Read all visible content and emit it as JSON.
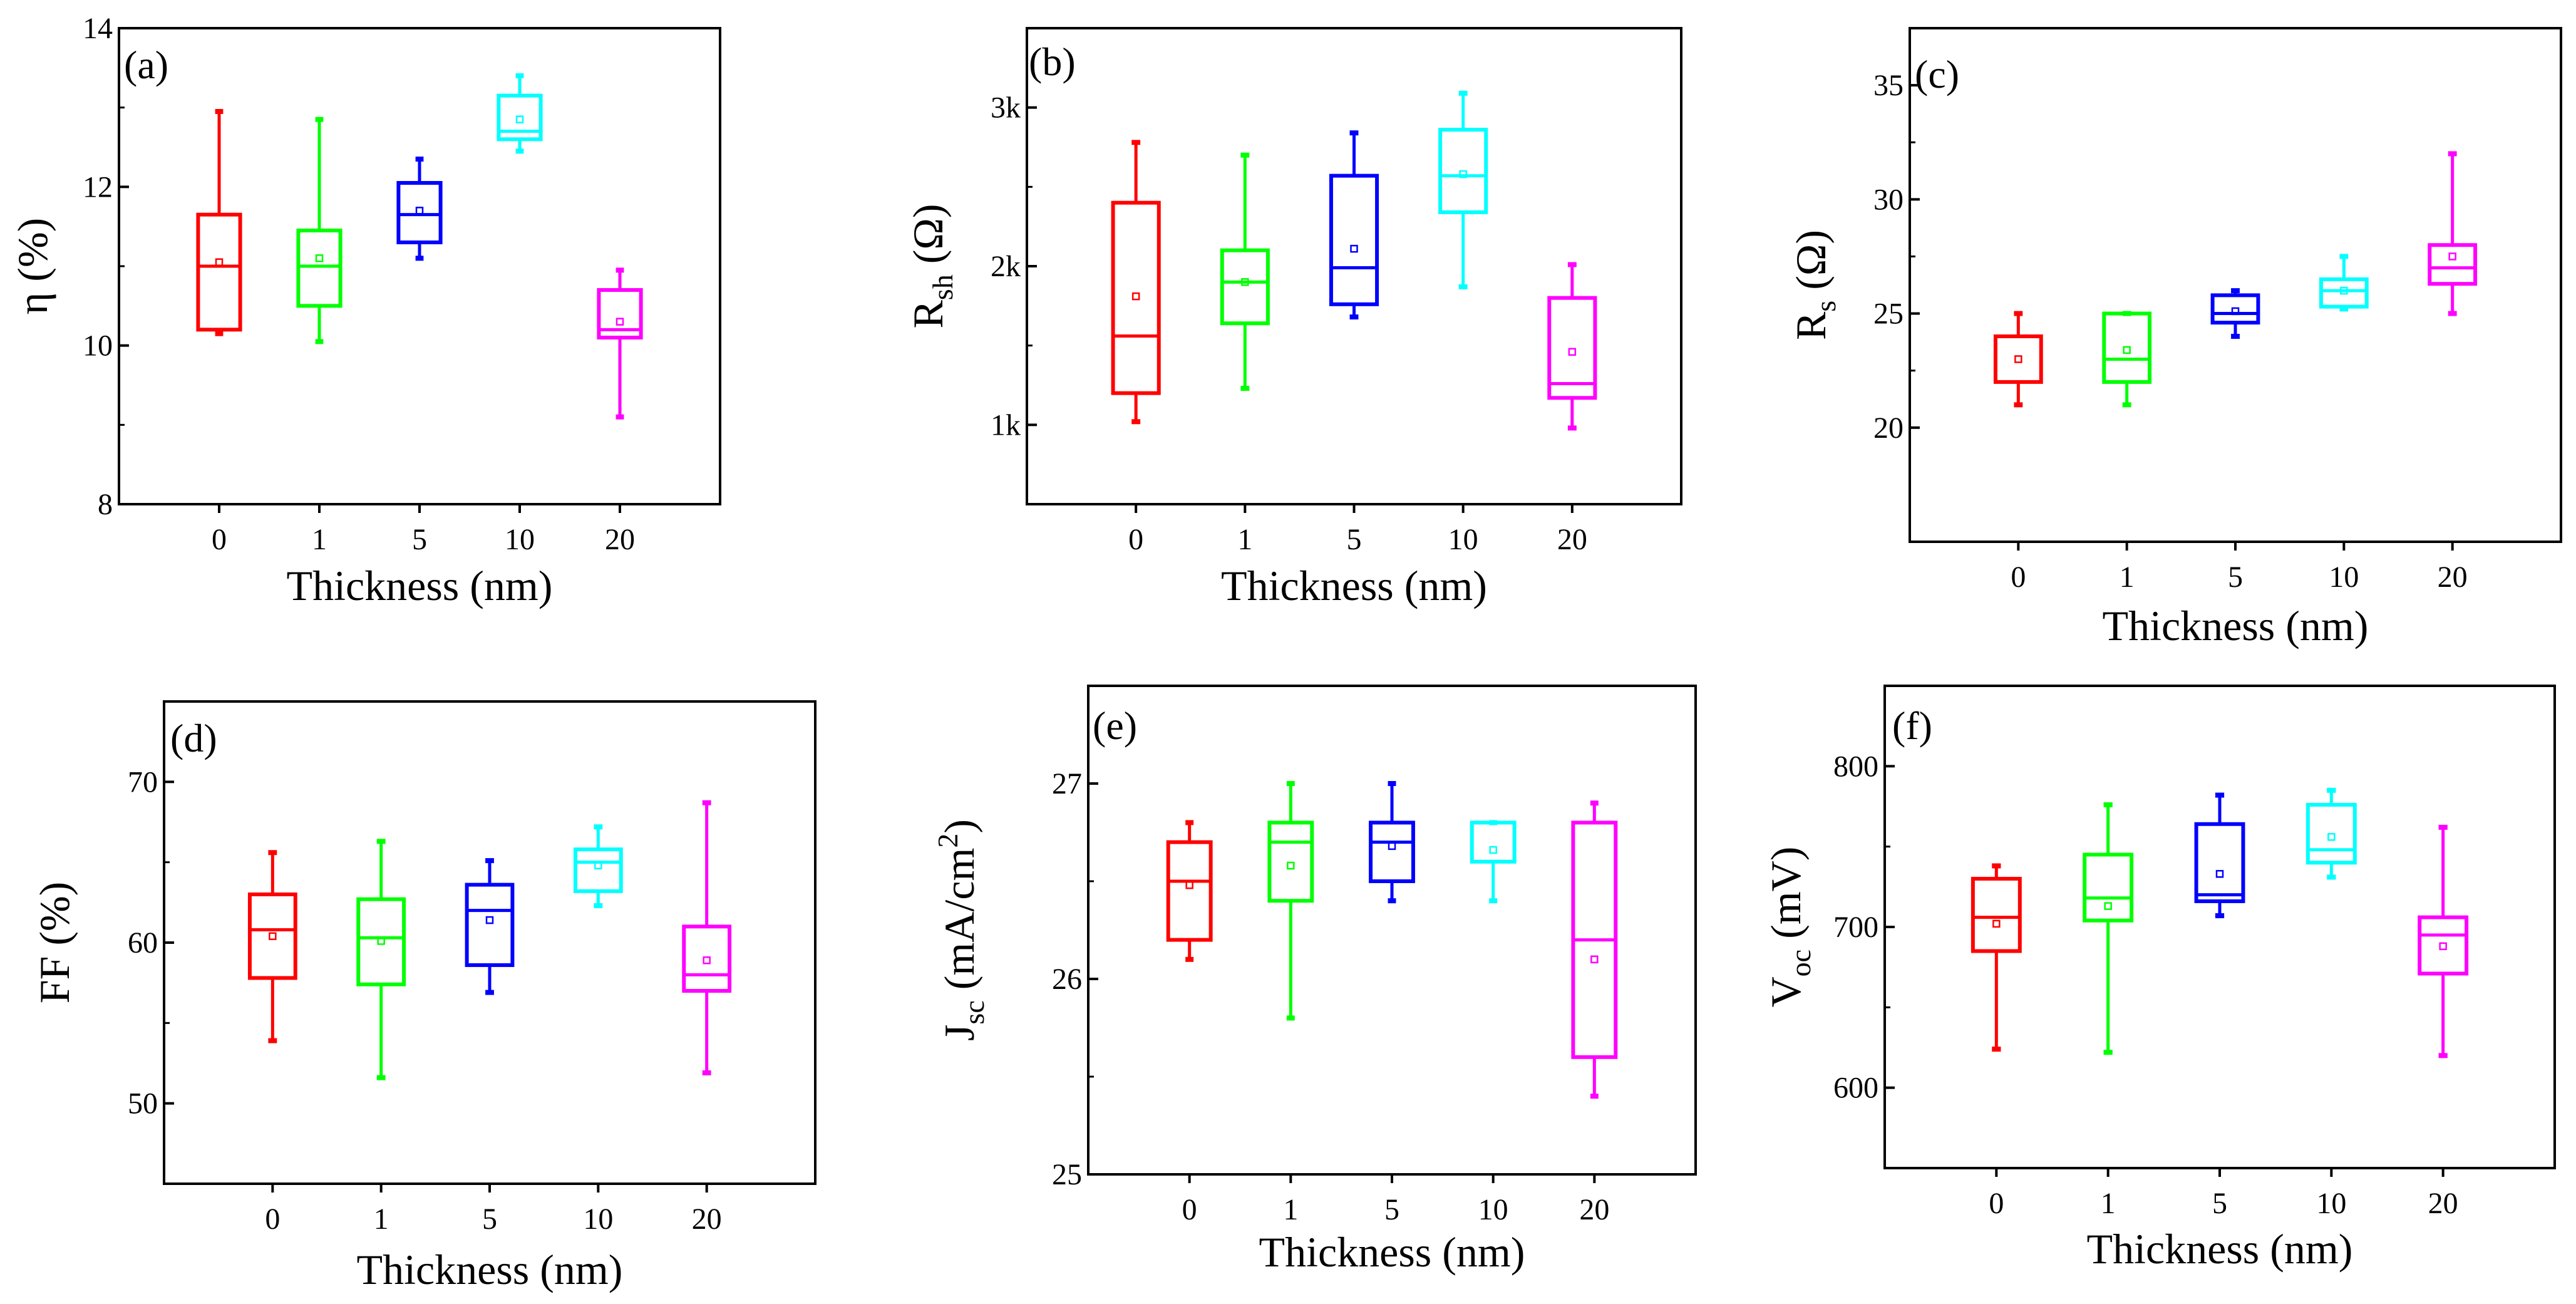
{
  "chart_data": [
    {
      "type": "box",
      "panel_label": "(a)",
      "ylabel": "η (%)",
      "xlabel": "Thickness (nm)",
      "categories": [
        "0",
        "1",
        "5",
        "10",
        "20"
      ],
      "colors": [
        "#ff0000",
        "#00ff00",
        "#0000ff",
        "#00ffff",
        "#ff00ff"
      ],
      "ylim": [
        8,
        14
      ],
      "yticks": [
        8,
        10,
        12,
        14
      ],
      "ytick_labels": [
        "8",
        "10",
        "12",
        "14"
      ],
      "boxes": [
        {
          "category": "0",
          "min": 10.15,
          "q1": 10.2,
          "median": 11.0,
          "q3": 11.65,
          "max": 12.95,
          "mean": 11.05
        },
        {
          "category": "1",
          "min": 10.05,
          "q1": 10.5,
          "median": 11.0,
          "q3": 11.45,
          "max": 12.85,
          "mean": 11.1
        },
        {
          "category": "5",
          "min": 11.1,
          "q1": 11.3,
          "median": 11.65,
          "q3": 12.05,
          "max": 12.35,
          "mean": 11.7
        },
        {
          "category": "10",
          "min": 12.45,
          "q1": 12.6,
          "median": 12.7,
          "q3": 13.15,
          "max": 13.4,
          "mean": 12.85
        },
        {
          "category": "20",
          "min": 9.1,
          "q1": 10.1,
          "median": 10.2,
          "q3": 10.7,
          "max": 10.95,
          "mean": 10.3
        }
      ]
    },
    {
      "type": "box",
      "panel_label": "(b)",
      "ylabel": "R_sh (Ω)",
      "ylabel_main": "R",
      "ylabel_sub": "sh",
      "ylabel_unit": " (Ω)",
      "xlabel": "Thickness (nm)",
      "categories": [
        "0",
        "1",
        "5",
        "10",
        "20"
      ],
      "colors": [
        "#ff0000",
        "#00ff00",
        "#0000ff",
        "#00ffff",
        "#ff00ff"
      ],
      "ylim": [
        500,
        3500
      ],
      "yticks": [
        1000,
        2000,
        3000
      ],
      "ytick_labels": [
        "1k",
        "2k",
        "3k"
      ],
      "boxes": [
        {
          "category": "0",
          "min": 1020,
          "q1": 1200,
          "median": 1560,
          "q3": 2400,
          "max": 2780,
          "mean": 1810
        },
        {
          "category": "1",
          "min": 1230,
          "q1": 1640,
          "median": 1900,
          "q3": 2100,
          "max": 2700,
          "mean": 1900
        },
        {
          "category": "5",
          "min": 1680,
          "q1": 1760,
          "median": 1990,
          "q3": 2570,
          "max": 2840,
          "mean": 2110
        },
        {
          "category": "10",
          "min": 1870,
          "q1": 2340,
          "median": 2570,
          "q3": 2860,
          "max": 3090,
          "mean": 2580
        },
        {
          "category": "20",
          "min": 980,
          "q1": 1170,
          "median": 1260,
          "q3": 1800,
          "max": 2010,
          "mean": 1460
        }
      ]
    },
    {
      "type": "box",
      "panel_label": "(c)",
      "ylabel": "R_s (Ω)",
      "ylabel_main": "R",
      "ylabel_sub": "s",
      "ylabel_unit": " (Ω)",
      "xlabel": "Thickness (nm)",
      "categories": [
        "0",
        "1",
        "5",
        "10",
        "20"
      ],
      "colors": [
        "#ff0000",
        "#00ff00",
        "#0000ff",
        "#00ffff",
        "#ff00ff"
      ],
      "ylim": [
        15,
        37.5
      ],
      "yticks": [
        20,
        25,
        30,
        35
      ],
      "ytick_labels": [
        "20",
        "25",
        "30",
        "35"
      ],
      "boxes": [
        {
          "category": "0",
          "min": 21.0,
          "q1": 22.0,
          "median": 22.0,
          "q3": 24.0,
          "max": 25.0,
          "mean": 23.0
        },
        {
          "category": "1",
          "min": 21.0,
          "q1": 22.0,
          "median": 23.0,
          "q3": 25.0,
          "max": 25.0,
          "mean": 23.4
        },
        {
          "category": "5",
          "min": 24.0,
          "q1": 24.6,
          "median": 25.0,
          "q3": 25.8,
          "max": 26.0,
          "mean": 25.1
        },
        {
          "category": "10",
          "min": 25.2,
          "q1": 25.3,
          "median": 26.0,
          "q3": 26.5,
          "max": 27.5,
          "mean": 26.0
        },
        {
          "category": "20",
          "min": 25.0,
          "q1": 26.3,
          "median": 27.0,
          "q3": 28.0,
          "max": 32.0,
          "mean": 27.5
        }
      ]
    },
    {
      "type": "box",
      "panel_label": "(d)",
      "ylabel": "FF (%)",
      "xlabel": "Thickness (nm)",
      "categories": [
        "0",
        "1",
        "5",
        "10",
        "20"
      ],
      "colors": [
        "#ff0000",
        "#00ff00",
        "#0000ff",
        "#00ffff",
        "#ff00ff"
      ],
      "ylim": [
        45,
        75
      ],
      "yticks": [
        50,
        60,
        70
      ],
      "ytick_labels": [
        "50",
        "60",
        "70"
      ],
      "boxes": [
        {
          "category": "0",
          "min": 53.9,
          "q1": 57.8,
          "median": 60.8,
          "q3": 63.0,
          "max": 65.6,
          "mean": 60.4
        },
        {
          "category": "1",
          "min": 51.6,
          "q1": 57.4,
          "median": 60.3,
          "q3": 62.7,
          "max": 66.3,
          "mean": 60.1
        },
        {
          "category": "5",
          "min": 56.9,
          "q1": 58.6,
          "median": 62.0,
          "q3": 63.6,
          "max": 65.1,
          "mean": 61.4
        },
        {
          "category": "10",
          "min": 62.3,
          "q1": 63.2,
          "median": 65.0,
          "q3": 65.8,
          "max": 67.2,
          "mean": 64.8
        },
        {
          "category": "20",
          "min": 51.9,
          "q1": 57.0,
          "median": 58.0,
          "q3": 61.0,
          "max": 68.7,
          "mean": 58.9
        }
      ]
    },
    {
      "type": "box",
      "panel_label": "(e)",
      "ylabel": "J_sc (mA/cm^2)",
      "ylabel_main": "J",
      "ylabel_sub": "sc",
      "ylabel_unit": " (mA/cm",
      "ylabel_sup": "2",
      "ylabel_end": ")",
      "xlabel": "Thickness (nm)",
      "categories": [
        "0",
        "1",
        "5",
        "10",
        "20"
      ],
      "colors": [
        "#ff0000",
        "#00ff00",
        "#0000ff",
        "#00ffff",
        "#ff00ff"
      ],
      "ylim": [
        25,
        27.5
      ],
      "yticks": [
        25,
        26,
        27
      ],
      "ytick_labels": [
        "25",
        "26",
        "27"
      ],
      "boxes": [
        {
          "category": "0",
          "min": 26.1,
          "q1": 26.2,
          "median": 26.5,
          "q3": 26.7,
          "max": 26.8,
          "mean": 26.48
        },
        {
          "category": "1",
          "min": 25.8,
          "q1": 26.4,
          "median": 26.7,
          "q3": 26.8,
          "max": 27.0,
          "mean": 26.58
        },
        {
          "category": "5",
          "min": 26.4,
          "q1": 26.5,
          "median": 26.7,
          "q3": 26.8,
          "max": 27.0,
          "mean": 26.68
        },
        {
          "category": "10",
          "min": 26.4,
          "q1": 26.6,
          "median": 26.6,
          "q3": 26.8,
          "max": 26.8,
          "mean": 26.66
        },
        {
          "category": "20",
          "min": 25.4,
          "q1": 25.6,
          "median": 26.2,
          "q3": 26.8,
          "max": 26.9,
          "mean": 26.1
        }
      ]
    },
    {
      "type": "box",
      "panel_label": "(f)",
      "ylabel": "V_oc (mV)",
      "ylabel_main": "V",
      "ylabel_sub": "oc",
      "ylabel_unit": " (mV)",
      "xlabel": "Thickness (nm)",
      "categories": [
        "0",
        "1",
        "5",
        "10",
        "20"
      ],
      "colors": [
        "#ff0000",
        "#00ff00",
        "#0000ff",
        "#00ffff",
        "#ff00ff"
      ],
      "ylim": [
        550,
        850
      ],
      "yticks": [
        600,
        700,
        800
      ],
      "ytick_labels": [
        "600",
        "700",
        "800"
      ],
      "boxes": [
        {
          "category": "0",
          "min": 624,
          "q1": 685,
          "median": 706,
          "q3": 730,
          "max": 738,
          "mean": 702
        },
        {
          "category": "1",
          "min": 622,
          "q1": 704,
          "median": 718,
          "q3": 745,
          "max": 776,
          "mean": 713
        },
        {
          "category": "5",
          "min": 707,
          "q1": 716,
          "median": 720,
          "q3": 764,
          "max": 782,
          "mean": 733
        },
        {
          "category": "10",
          "min": 731,
          "q1": 740,
          "median": 748,
          "q3": 776,
          "max": 785,
          "mean": 756
        },
        {
          "category": "20",
          "min": 620,
          "q1": 671,
          "median": 695,
          "q3": 706,
          "max": 762,
          "mean": 688
        }
      ]
    }
  ]
}
